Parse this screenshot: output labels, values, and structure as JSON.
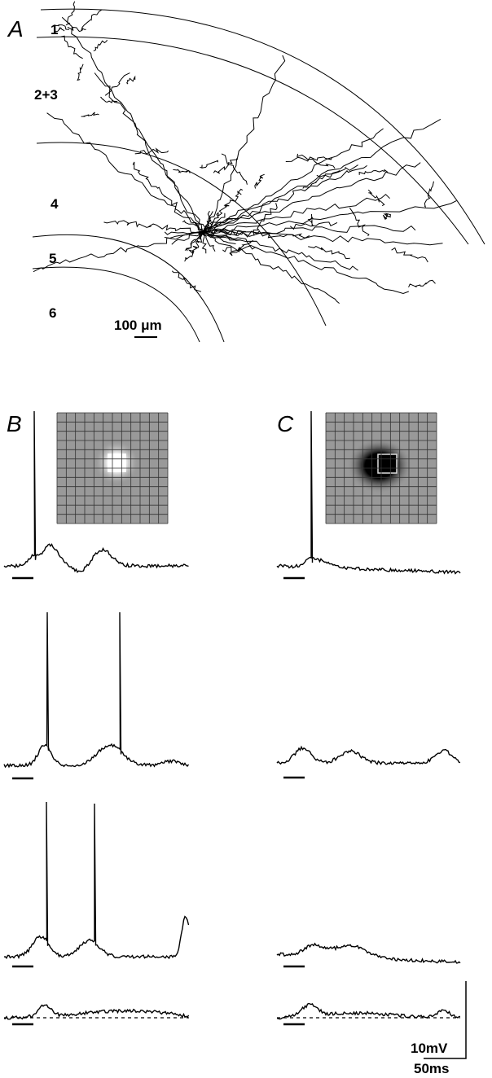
{
  "panels": [
    {
      "label": "A",
      "layers": [
        "1",
        "2+3",
        "4",
        "5",
        "6"
      ],
      "scale_bar": "100 μm"
    },
    {
      "label": "B"
    },
    {
      "label": "C"
    }
  ],
  "scale_bar": {
    "voltage": "10mV",
    "time": "50ms"
  }
}
